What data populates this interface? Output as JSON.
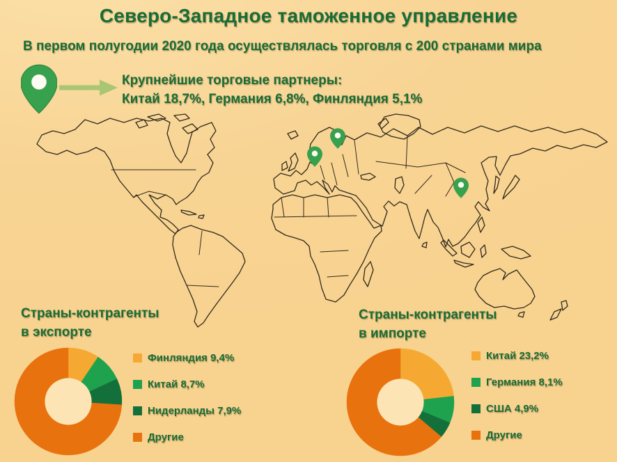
{
  "page": {
    "background": "#F8D494"
  },
  "header": {
    "title": "Северо-Западное таможенное управление",
    "subtitle": "В первом полугодии 2020 года осуществлялась торговля с 200 странами мира"
  },
  "callout": {
    "line1": "Крупнейшие торговые партнеры:",
    "line2": "Китай 18,7%, Германия 6,8%, Финляндия 5,1%"
  },
  "map": {
    "pins": [
      "finland",
      "germany",
      "china"
    ]
  },
  "colors": {
    "orange": "#E8720E",
    "yellow": "#F5A933",
    "green": "#1EA24E",
    "dark_green": "#14703A",
    "pin_green": "#38A14D",
    "pin_hole": "#FDFBF2",
    "arrow_green": "#A9C674",
    "text_green": "#186C35",
    "map_line": "#30291A",
    "donut_hole": "#FCE4B4"
  },
  "chart_data": [
    {
      "type": "donut",
      "name": "export",
      "title_line1": "Страны-контрагенты",
      "title_line2": "в экспорте",
      "legend_position": "right",
      "slices": [
        {
          "label": "Финляндия",
          "display": "Финляндия 9,4%",
          "value": 9.4,
          "color": "#F5A933"
        },
        {
          "label": "Китай",
          "display": "Китай 8,7%",
          "value": 8.7,
          "color": "#1EA24E"
        },
        {
          "label": "Нидерланды",
          "display": "Нидерланды 7,9%",
          "value": 7.9,
          "color": "#14703A"
        },
        {
          "label": "Другие",
          "display": "Другие",
          "value": 74.0,
          "color": "#E8720E"
        }
      ]
    },
    {
      "type": "donut",
      "name": "import",
      "title_line1": "Страны-контрагенты",
      "title_line2": "в импорте",
      "legend_position": "right",
      "slices": [
        {
          "label": "Китай",
          "display": "Китай 23,2%",
          "value": 23.2,
          "color": "#F5A933"
        },
        {
          "label": "Германия",
          "display": "Германия 8,1%",
          "value": 8.1,
          "color": "#1EA24E"
        },
        {
          "label": "США",
          "display": "США 4,9%",
          "value": 4.9,
          "color": "#14703A"
        },
        {
          "label": "Другие",
          "display": "Другие",
          "value": 63.8,
          "color": "#E8720E"
        }
      ]
    }
  ]
}
